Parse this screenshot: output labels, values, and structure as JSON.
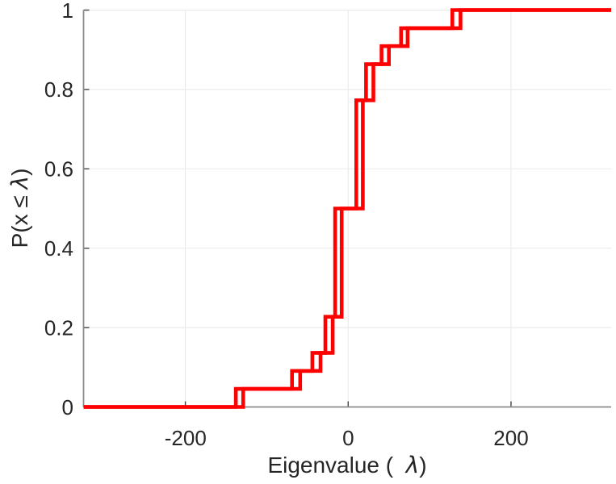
{
  "chart_data": {
    "type": "line",
    "subtype": "ecdf-stairs",
    "title": "",
    "xlabel": "Eigenvalue (  λ)",
    "ylabel": "P(x ≤ λ)",
    "xlabel_parts": {
      "pre": "Eigenvalue (  ",
      "lambda": "λ",
      "post": ")"
    },
    "ylabel_parts": {
      "pre": "P(x ≤ ",
      "lambda": "λ",
      "post": ")"
    },
    "xlim": [
      -325,
      323
    ],
    "ylim": [
      0,
      1
    ],
    "x_ticks": [
      -200,
      0,
      200
    ],
    "x_tick_labels": [
      "-200",
      "0",
      "200"
    ],
    "y_ticks": [
      0,
      0.2,
      0.4,
      0.6,
      0.8,
      1
    ],
    "y_tick_labels": [
      "0",
      "0.2",
      "0.4",
      "0.6",
      "0.8",
      "1"
    ],
    "grid": true,
    "legend": null,
    "n_points": 22,
    "line_color": "#ff0000",
    "line_width": 4.6,
    "grid_color": "#ebebeb",
    "spine_color": "#8a8a8a",
    "tick_color": "#444444",
    "text_color": "#262626",
    "series": [
      {
        "name": "ecdf-curve-1",
        "jumps": [
          [
            -138,
            0.0455
          ],
          [
            -69,
            0.0909
          ],
          [
            -44,
            0.1364
          ],
          [
            -28,
            0.2273
          ],
          [
            -16,
            0.5
          ],
          [
            10,
            0.7727
          ],
          [
            22,
            0.8636
          ],
          [
            41,
            0.9091
          ],
          [
            65,
            0.9545
          ],
          [
            128,
            1
          ]
        ]
      },
      {
        "name": "ecdf-curve-2",
        "jumps": [
          [
            -129,
            0.0455
          ],
          [
            -59,
            0.0909
          ],
          [
            -34,
            0.1364
          ],
          [
            -19,
            0.2273
          ],
          [
            -8,
            0.5
          ],
          [
            18,
            0.7727
          ],
          [
            31,
            0.8636
          ],
          [
            50,
            0.9091
          ],
          [
            73,
            0.9545
          ],
          [
            138,
            1
          ]
        ]
      }
    ]
  }
}
